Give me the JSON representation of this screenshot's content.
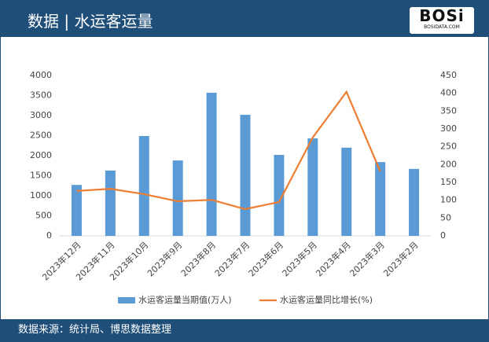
{
  "header": {
    "title": "数据 | 水运客运量",
    "logo": "BOSi",
    "logo_sub": "BOSIDATA.COM"
  },
  "footer": "数据来源：统计局、博思数据整理",
  "chart_data": {
    "type": "bar-line",
    "categories": [
      "2023年12月",
      "2023年11月",
      "2023年10月",
      "2023年9月",
      "2023年8月",
      "2023年7月",
      "2023年6月",
      "2023年5月",
      "2023年4月",
      "2023年3月",
      "2023年2月"
    ],
    "series": [
      {
        "name": "水运客运量当期值(万人)",
        "type": "bar",
        "color": "#5b9bd5",
        "values": [
          1270,
          1630,
          2490,
          1880,
          3570,
          3020,
          2020,
          2430,
          2200,
          1840,
          1670
        ]
      },
      {
        "name": "水运客运量同比增长(%)",
        "type": "line",
        "axis": "y2",
        "color": "#ed7d31",
        "values": [
          126,
          132,
          117,
          97,
          101,
          75,
          95,
          276,
          404,
          181,
          null
        ]
      }
    ],
    "ylim": [
      0,
      4000
    ],
    "yticks": [
      0,
      500,
      1000,
      1500,
      2000,
      2500,
      3000,
      3500,
      4000
    ],
    "y2lim": [
      0,
      450
    ],
    "y2ticks": [
      0,
      50,
      100,
      150,
      200,
      250,
      300,
      350,
      400,
      450
    ],
    "legend": "bottom"
  }
}
